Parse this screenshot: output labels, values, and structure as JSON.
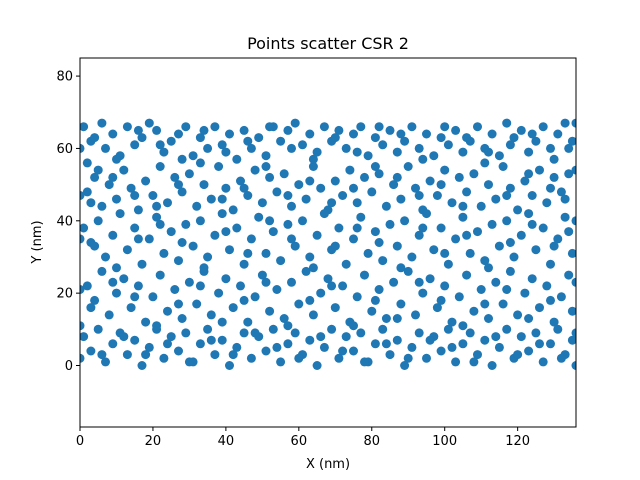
{
  "chart_data": {
    "type": "scatter",
    "title": "Points scatter CSR 2",
    "xlabel": "X (nm)",
    "ylabel": "Y (nm)",
    "xlim": [
      0,
      136
    ],
    "ylim": [
      -17,
      85
    ],
    "xticks": [
      0,
      20,
      40,
      60,
      80,
      100,
      120
    ],
    "yticks": [
      0,
      20,
      40,
      60,
      80
    ],
    "grid": false,
    "legend": "none",
    "marker_color": "#1f77b4",
    "point_count_estimate": 1000,
    "points": [
      [
        1,
        66
      ],
      [
        2,
        56
      ],
      [
        3,
        62
      ],
      [
        5,
        54
      ],
      [
        6,
        67
      ],
      [
        7,
        60
      ],
      [
        9,
        64
      ],
      [
        11,
        58
      ],
      [
        13,
        66
      ],
      [
        15,
        61
      ],
      [
        17,
        63
      ],
      [
        19,
        67
      ],
      [
        21,
        65
      ],
      [
        23,
        59
      ],
      [
        25,
        62
      ],
      [
        27,
        64
      ],
      [
        29,
        66
      ],
      [
        31,
        58
      ],
      [
        33,
        63
      ],
      [
        35,
        60
      ],
      [
        37,
        66
      ],
      [
        39,
        61
      ],
      [
        41,
        64
      ],
      [
        43,
        57
      ],
      [
        45,
        65
      ],
      [
        47,
        60
      ],
      [
        49,
        63
      ],
      [
        51,
        58
      ],
      [
        53,
        66
      ],
      [
        55,
        62
      ],
      [
        57,
        65
      ],
      [
        59,
        67
      ],
      [
        61,
        61
      ],
      [
        63,
        64
      ],
      [
        65,
        59
      ],
      [
        67,
        66
      ],
      [
        69,
        62
      ],
      [
        71,
        65
      ],
      [
        73,
        60
      ],
      [
        75,
        64
      ],
      [
        77,
        66
      ],
      [
        79,
        58
      ],
      [
        81,
        63
      ],
      [
        83,
        61
      ],
      [
        85,
        65
      ],
      [
        87,
        59
      ],
      [
        89,
        62
      ],
      [
        91,
        66
      ],
      [
        93,
        60
      ],
      [
        95,
        64
      ],
      [
        97,
        58
      ],
      [
        99,
        63
      ],
      [
        101,
        61
      ],
      [
        103,
        65
      ],
      [
        105,
        59
      ],
      [
        107,
        62
      ],
      [
        109,
        66
      ],
      [
        111,
        60
      ],
      [
        113,
        64
      ],
      [
        115,
        58
      ],
      [
        117,
        67
      ],
      [
        119,
        63
      ],
      [
        121,
        65
      ],
      [
        123,
        59
      ],
      [
        125,
        62
      ],
      [
        127,
        66
      ],
      [
        129,
        60
      ],
      [
        131,
        64
      ],
      [
        133,
        67
      ],
      [
        135,
        62
      ],
      [
        2,
        48
      ],
      [
        4,
        52
      ],
      [
        6,
        44
      ],
      [
        8,
        50
      ],
      [
        10,
        46
      ],
      [
        12,
        54
      ],
      [
        14,
        49
      ],
      [
        16,
        43
      ],
      [
        18,
        51
      ],
      [
        20,
        47
      ],
      [
        22,
        55
      ],
      [
        24,
        45
      ],
      [
        26,
        52
      ],
      [
        28,
        48
      ],
      [
        30,
        53
      ],
      [
        32,
        44
      ],
      [
        34,
        50
      ],
      [
        36,
        46
      ],
      [
        38,
        55
      ],
      [
        40,
        49
      ],
      [
        42,
        43
      ],
      [
        44,
        51
      ],
      [
        46,
        47
      ],
      [
        48,
        54
      ],
      [
        50,
        45
      ],
      [
        52,
        52
      ],
      [
        54,
        48
      ],
      [
        56,
        53
      ],
      [
        58,
        44
      ],
      [
        60,
        50
      ],
      [
        62,
        46
      ],
      [
        64,
        55
      ],
      [
        66,
        49
      ],
      [
        68,
        43
      ],
      [
        70,
        51
      ],
      [
        72,
        47
      ],
      [
        74,
        54
      ],
      [
        76,
        45
      ],
      [
        78,
        52
      ],
      [
        80,
        48
      ],
      [
        82,
        53
      ],
      [
        84,
        44
      ],
      [
        86,
        50
      ],
      [
        88,
        46
      ],
      [
        90,
        55
      ],
      [
        92,
        49
      ],
      [
        94,
        43
      ],
      [
        96,
        51
      ],
      [
        98,
        47
      ],
      [
        100,
        54
      ],
      [
        102,
        45
      ],
      [
        104,
        52
      ],
      [
        106,
        48
      ],
      [
        108,
        53
      ],
      [
        110,
        44
      ],
      [
        112,
        50
      ],
      [
        114,
        46
      ],
      [
        116,
        55
      ],
      [
        118,
        49
      ],
      [
        120,
        43
      ],
      [
        122,
        51
      ],
      [
        124,
        47
      ],
      [
        126,
        54
      ],
      [
        128,
        45
      ],
      [
        130,
        52
      ],
      [
        132,
        48
      ],
      [
        134,
        53
      ],
      [
        1,
        38
      ],
      [
        3,
        34
      ],
      [
        5,
        40
      ],
      [
        7,
        30
      ],
      [
        9,
        36
      ],
      [
        11,
        42
      ],
      [
        13,
        32
      ],
      [
        15,
        38
      ],
      [
        17,
        28
      ],
      [
        19,
        35
      ],
      [
        21,
        41
      ],
      [
        23,
        31
      ],
      [
        25,
        37
      ],
      [
        27,
        29
      ],
      [
        29,
        39
      ],
      [
        31,
        33
      ],
      [
        33,
        40
      ],
      [
        35,
        30
      ],
      [
        37,
        36
      ],
      [
        39,
        42
      ],
      [
        41,
        32
      ],
      [
        43,
        38
      ],
      [
        45,
        28
      ],
      [
        47,
        35
      ],
      [
        49,
        41
      ],
      [
        51,
        31
      ],
      [
        53,
        37
      ],
      [
        55,
        29
      ],
      [
        57,
        39
      ],
      [
        59,
        33
      ],
      [
        61,
        40
      ],
      [
        63,
        30
      ],
      [
        65,
        36
      ],
      [
        67,
        42
      ],
      [
        69,
        32
      ],
      [
        71,
        38
      ],
      [
        73,
        28
      ],
      [
        75,
        35
      ],
      [
        77,
        41
      ],
      [
        79,
        31
      ],
      [
        81,
        37
      ],
      [
        83,
        29
      ],
      [
        85,
        39
      ],
      [
        87,
        33
      ],
      [
        89,
        40
      ],
      [
        91,
        30
      ],
      [
        93,
        36
      ],
      [
        95,
        42
      ],
      [
        97,
        32
      ],
      [
        99,
        38
      ],
      [
        101,
        28
      ],
      [
        103,
        35
      ],
      [
        105,
        41
      ],
      [
        107,
        31
      ],
      [
        109,
        37
      ],
      [
        111,
        29
      ],
      [
        113,
        39
      ],
      [
        115,
        33
      ],
      [
        117,
        40
      ],
      [
        119,
        30
      ],
      [
        121,
        36
      ],
      [
        123,
        42
      ],
      [
        125,
        32
      ],
      [
        127,
        38
      ],
      [
        129,
        28
      ],
      [
        131,
        35
      ],
      [
        133,
        41
      ],
      [
        135,
        31
      ],
      [
        2,
        22
      ],
      [
        4,
        18
      ],
      [
        6,
        26
      ],
      [
        8,
        14
      ],
      [
        10,
        20
      ],
      [
        12,
        24
      ],
      [
        14,
        16
      ],
      [
        16,
        22
      ],
      [
        18,
        12
      ],
      [
        20,
        19
      ],
      [
        22,
        25
      ],
      [
        24,
        15
      ],
      [
        26,
        21
      ],
      [
        28,
        13
      ],
      [
        30,
        23
      ],
      [
        32,
        17
      ],
      [
        34,
        26
      ],
      [
        36,
        14
      ],
      [
        38,
        20
      ],
      [
        40,
        24
      ],
      [
        42,
        16
      ],
      [
        44,
        22
      ],
      [
        46,
        12
      ],
      [
        48,
        19
      ],
      [
        50,
        25
      ],
      [
        52,
        15
      ],
      [
        54,
        21
      ],
      [
        56,
        13
      ],
      [
        58,
        23
      ],
      [
        60,
        17
      ],
      [
        62,
        26
      ],
      [
        64,
        14
      ],
      [
        66,
        20
      ],
      [
        68,
        24
      ],
      [
        70,
        16
      ],
      [
        72,
        22
      ],
      [
        74,
        12
      ],
      [
        76,
        19
      ],
      [
        78,
        25
      ],
      [
        80,
        15
      ],
      [
        82,
        21
      ],
      [
        84,
        13
      ],
      [
        86,
        23
      ],
      [
        88,
        17
      ],
      [
        90,
        26
      ],
      [
        92,
        14
      ],
      [
        94,
        20
      ],
      [
        96,
        24
      ],
      [
        98,
        16
      ],
      [
        100,
        22
      ],
      [
        102,
        12
      ],
      [
        104,
        19
      ],
      [
        106,
        25
      ],
      [
        108,
        15
      ],
      [
        110,
        21
      ],
      [
        112,
        13
      ],
      [
        114,
        23
      ],
      [
        116,
        17
      ],
      [
        118,
        26
      ],
      [
        120,
        14
      ],
      [
        122,
        20
      ],
      [
        124,
        24
      ],
      [
        126,
        16
      ],
      [
        128,
        22
      ],
      [
        130,
        12
      ],
      [
        132,
        19
      ],
      [
        134,
        25
      ],
      [
        1,
        8
      ],
      [
        3,
        4
      ],
      [
        5,
        10
      ],
      [
        7,
        1
      ],
      [
        9,
        6
      ],
      [
        11,
        9
      ],
      [
        13,
        3
      ],
      [
        15,
        7
      ],
      [
        17,
        0
      ],
      [
        19,
        5
      ],
      [
        21,
        10
      ],
      [
        23,
        2
      ],
      [
        25,
        8
      ],
      [
        27,
        4
      ],
      [
        29,
        9
      ],
      [
        31,
        1
      ],
      [
        33,
        6
      ],
      [
        35,
        10
      ],
      [
        37,
        3
      ],
      [
        39,
        7
      ],
      [
        41,
        0
      ],
      [
        43,
        5
      ],
      [
        45,
        9
      ],
      [
        47,
        2
      ],
      [
        49,
        8
      ],
      [
        51,
        4
      ],
      [
        53,
        10
      ],
      [
        55,
        1
      ],
      [
        57,
        6
      ],
      [
        59,
        9
      ],
      [
        61,
        3
      ],
      [
        63,
        7
      ],
      [
        65,
        0
      ],
      [
        67,
        5
      ],
      [
        69,
        10
      ],
      [
        71,
        2
      ],
      [
        73,
        8
      ],
      [
        75,
        4
      ],
      [
        77,
        9
      ],
      [
        79,
        1
      ],
      [
        81,
        6
      ],
      [
        83,
        10
      ],
      [
        85,
        3
      ],
      [
        87,
        7
      ],
      [
        89,
        0
      ],
      [
        91,
        5
      ],
      [
        93,
        9
      ],
      [
        95,
        2
      ],
      [
        97,
        8
      ],
      [
        99,
        4
      ],
      [
        101,
        10
      ],
      [
        103,
        1
      ],
      [
        105,
        6
      ],
      [
        107,
        9
      ],
      [
        109,
        3
      ],
      [
        111,
        7
      ],
      [
        113,
        0
      ],
      [
        115,
        5
      ],
      [
        117,
        10
      ],
      [
        119,
        2
      ],
      [
        121,
        8
      ],
      [
        123,
        4
      ],
      [
        125,
        9
      ],
      [
        127,
        1
      ],
      [
        129,
        6
      ],
      [
        131,
        10
      ],
      [
        133,
        3
      ],
      [
        135,
        7
      ],
      [
        4,
        63
      ],
      [
        10,
        57
      ],
      [
        16,
        65
      ],
      [
        22,
        61
      ],
      [
        28,
        57
      ],
      [
        34,
        65
      ],
      [
        40,
        59
      ],
      [
        46,
        62
      ],
      [
        52,
        66
      ],
      [
        58,
        60
      ],
      [
        64,
        57
      ],
      [
        70,
        63
      ],
      [
        76,
        59
      ],
      [
        82,
        66
      ],
      [
        88,
        64
      ],
      [
        94,
        57
      ],
      [
        100,
        66
      ],
      [
        106,
        63
      ],
      [
        112,
        59
      ],
      [
        118,
        61
      ],
      [
        124,
        64
      ],
      [
        130,
        57
      ],
      [
        134,
        60
      ],
      [
        3,
        45
      ],
      [
        9,
        52
      ],
      [
        15,
        47
      ],
      [
        21,
        44
      ],
      [
        27,
        50
      ],
      [
        33,
        56
      ],
      [
        39,
        46
      ],
      [
        45,
        49
      ],
      [
        51,
        55
      ],
      [
        57,
        47
      ],
      [
        63,
        51
      ],
      [
        69,
        45
      ],
      [
        75,
        49
      ],
      [
        81,
        55
      ],
      [
        87,
        52
      ],
      [
        93,
        47
      ],
      [
        99,
        50
      ],
      [
        105,
        44
      ],
      [
        111,
        56
      ],
      [
        117,
        47
      ],
      [
        123,
        53
      ],
      [
        129,
        49
      ],
      [
        133,
        46
      ],
      [
        4,
        33
      ],
      [
        10,
        27
      ],
      [
        16,
        35
      ],
      [
        22,
        39
      ],
      [
        28,
        34
      ],
      [
        34,
        27
      ],
      [
        40,
        37
      ],
      [
        46,
        31
      ],
      [
        52,
        40
      ],
      [
        58,
        35
      ],
      [
        64,
        27
      ],
      [
        70,
        33
      ],
      [
        76,
        38
      ],
      [
        82,
        34
      ],
      [
        88,
        27
      ],
      [
        94,
        38
      ],
      [
        100,
        31
      ],
      [
        106,
        36
      ],
      [
        112,
        27
      ],
      [
        118,
        34
      ],
      [
        124,
        39
      ],
      [
        130,
        33
      ],
      [
        134,
        37
      ],
      [
        3,
        16
      ],
      [
        9,
        23
      ],
      [
        15,
        19
      ],
      [
        21,
        11
      ],
      [
        27,
        17
      ],
      [
        33,
        22
      ],
      [
        39,
        12
      ],
      [
        45,
        18
      ],
      [
        51,
        23
      ],
      [
        57,
        11
      ],
      [
        63,
        18
      ],
      [
        69,
        22
      ],
      [
        75,
        11
      ],
      [
        81,
        18
      ],
      [
        87,
        13
      ],
      [
        93,
        23
      ],
      [
        99,
        18
      ],
      [
        105,
        11
      ],
      [
        111,
        17
      ],
      [
        117,
        21
      ],
      [
        123,
        13
      ],
      [
        129,
        18
      ],
      [
        135,
        15
      ],
      [
        6,
        3
      ],
      [
        12,
        8
      ],
      [
        18,
        3
      ],
      [
        24,
        6
      ],
      [
        30,
        1
      ],
      [
        36,
        7
      ],
      [
        42,
        3
      ],
      [
        48,
        9
      ],
      [
        54,
        5
      ],
      [
        60,
        2
      ],
      [
        66,
        8
      ],
      [
        72,
        4
      ],
      [
        78,
        1
      ],
      [
        84,
        6
      ],
      [
        90,
        2
      ],
      [
        96,
        7
      ],
      [
        102,
        5
      ],
      [
        108,
        1
      ],
      [
        114,
        8
      ],
      [
        120,
        3
      ],
      [
        126,
        6
      ],
      [
        132,
        2
      ],
      [
        0,
        60
      ],
      [
        0,
        47
      ],
      [
        0,
        35
      ],
      [
        0,
        21
      ],
      [
        0,
        11
      ],
      [
        0,
        2
      ],
      [
        136,
        67
      ],
      [
        136,
        54
      ],
      [
        136,
        40
      ],
      [
        136,
        23
      ],
      [
        136,
        9
      ],
      [
        136,
        0
      ]
    ]
  }
}
